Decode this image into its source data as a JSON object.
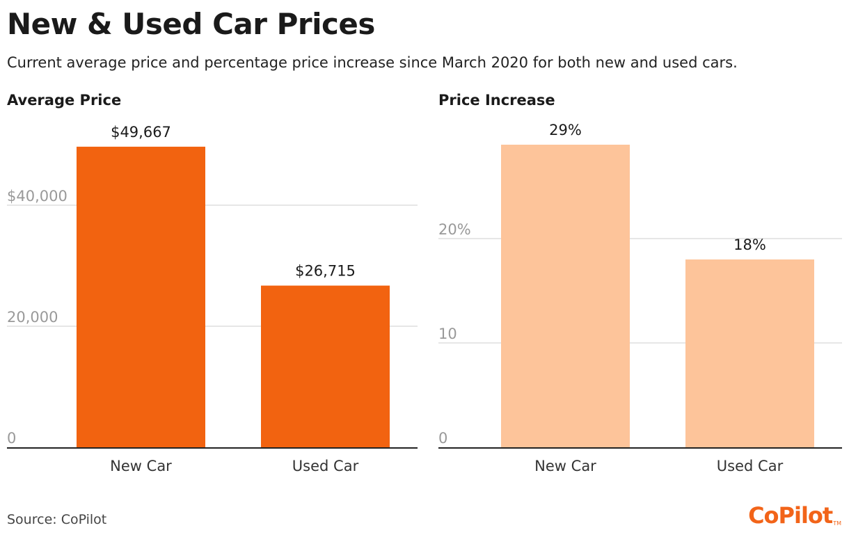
{
  "header": {
    "title": "New & Used Car Prices",
    "subtitle": "Current average price and percentage price increase since March 2020 for both new and used cars."
  },
  "colors": {
    "price_bar": "#f26310",
    "increase_bar": "#fdc49a",
    "grid": "#dddddd",
    "axis": "#222222",
    "tick_text": "#999999",
    "brand": "#f26419"
  },
  "chart_data": [
    {
      "type": "bar",
      "title": "Average Price",
      "categories": [
        "New Car",
        "Used Car"
      ],
      "values": [
        49667,
        26715
      ],
      "value_labels": [
        "$49,667",
        "$26,715"
      ],
      "ylim": [
        0,
        50000
      ],
      "yticks": [
        0,
        20000,
        40000
      ],
      "ytick_labels": [
        "0",
        "20,000",
        "$40,000"
      ],
      "grid": true,
      "color": "#f26310"
    },
    {
      "type": "bar",
      "title": "Price Increase",
      "categories": [
        "New Car",
        "Used Car"
      ],
      "values": [
        29,
        18
      ],
      "value_labels": [
        "29%",
        "18%"
      ],
      "ylim": [
        0,
        29
      ],
      "yticks": [
        0,
        10,
        20
      ],
      "ytick_labels": [
        "0",
        "10",
        "20%"
      ],
      "grid": true,
      "color": "#fdc49a"
    }
  ],
  "footer": {
    "source": "Source: CoPilot",
    "logo_text": "CoPilot",
    "logo_mark": "TM"
  }
}
